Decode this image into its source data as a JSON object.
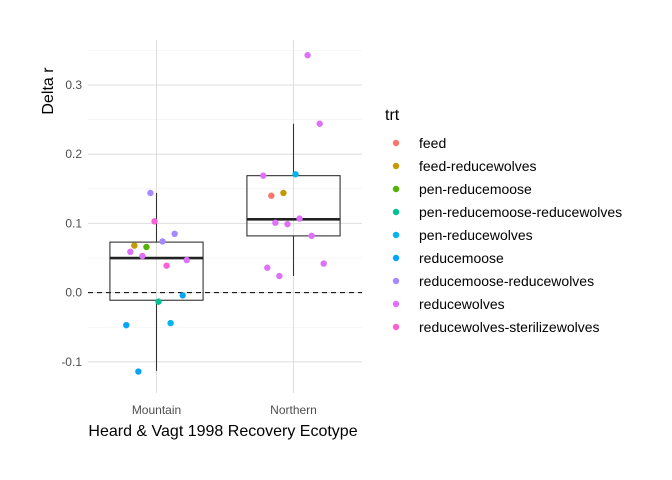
{
  "chart_data": {
    "type": "boxplot-jitter",
    "title": "",
    "xlabel": "Heard & Vagt 1998 Recovery Ecotype",
    "ylabel": "Delta r",
    "categories": [
      "Mountain",
      "Northern"
    ],
    "ylim": [
      -0.145,
      0.365
    ],
    "yticks": [
      -0.1,
      0.0,
      0.1,
      0.2,
      0.3
    ],
    "ytick_labels": [
      "-0.1",
      "0.0",
      "0.1",
      "0.2",
      "0.3"
    ],
    "reference_line": {
      "y": 0.0,
      "style": "dashed"
    },
    "grid": true,
    "legend": {
      "title": "trt",
      "position": "right"
    },
    "boxes": [
      {
        "category": "Mountain",
        "whisker_low": -0.113,
        "q1": -0.011,
        "median": 0.05,
        "q3": 0.073,
        "whisker_high": 0.144
      },
      {
        "category": "Northern",
        "whisker_low": 0.024,
        "q1": 0.082,
        "median": 0.106,
        "q3": 0.169,
        "whisker_high": 0.244
      }
    ],
    "series": [
      {
        "name": "feed",
        "color": "#F8766D",
        "points": [
          {
            "x": "Northern",
            "y": 0.14
          }
        ]
      },
      {
        "name": "feed-reducewolves",
        "color": "#C49A00",
        "points": [
          {
            "x": "Mountain",
            "y": 0.068
          },
          {
            "x": "Northern",
            "y": 0.144
          }
        ]
      },
      {
        "name": "pen-reducemoose",
        "color": "#53B400",
        "points": [
          {
            "x": "Mountain",
            "y": 0.066
          }
        ]
      },
      {
        "name": "pen-reducemoose-reducewolves",
        "color": "#00C094",
        "points": [
          {
            "x": "Mountain",
            "y": -0.013
          }
        ]
      },
      {
        "name": "pen-reducewolves",
        "color": "#00B6EB",
        "points": [
          {
            "x": "Mountain",
            "y": -0.044
          },
          {
            "x": "Northern",
            "y": 0.171
          }
        ]
      },
      {
        "name": "reducemoose",
        "color": "#06A4FF",
        "points": [
          {
            "x": "Mountain",
            "y": -0.004
          },
          {
            "x": "Mountain",
            "y": -0.047
          },
          {
            "x": "Mountain",
            "y": -0.114
          }
        ]
      },
      {
        "name": "reducemoose-reducewolves",
        "color": "#A58AFF",
        "points": [
          {
            "x": "Mountain",
            "y": 0.144
          },
          {
            "x": "Mountain",
            "y": 0.074
          },
          {
            "x": "Mountain",
            "y": 0.085
          }
        ]
      },
      {
        "name": "reducewolves",
        "color": "#DF70F8",
        "points": [
          {
            "x": "Mountain",
            "y": 0.047
          },
          {
            "x": "Mountain",
            "y": 0.059
          },
          {
            "x": "Mountain",
            "y": 0.053
          },
          {
            "x": "Northern",
            "y": 0.343
          },
          {
            "x": "Northern",
            "y": 0.244
          },
          {
            "x": "Northern",
            "y": 0.169
          },
          {
            "x": "Northern",
            "y": 0.101
          },
          {
            "x": "Northern",
            "y": 0.099
          },
          {
            "x": "Northern",
            "y": 0.107
          },
          {
            "x": "Northern",
            "y": 0.082
          },
          {
            "x": "Northern",
            "y": 0.042
          },
          {
            "x": "Northern",
            "y": 0.036
          },
          {
            "x": "Northern",
            "y": 0.024
          }
        ]
      },
      {
        "name": "reducewolves-sterilizewolves",
        "color": "#FB61D7",
        "points": [
          {
            "x": "Mountain",
            "y": 0.103
          },
          {
            "x": "Mountain",
            "y": 0.039
          }
        ]
      }
    ]
  }
}
